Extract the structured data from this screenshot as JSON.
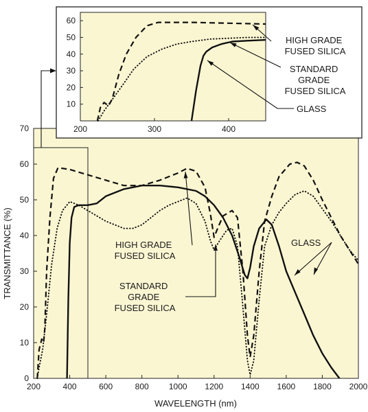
{
  "chart_data": [
    {
      "type": "line",
      "xlabel": "WAVELENGTH (nm)",
      "ylabel": "TRANSMITTANCE (%)",
      "xlim": [
        200,
        2000
      ],
      "ylim": [
        0,
        70
      ],
      "x_ticks": [
        "200",
        "400",
        "600",
        "800",
        "1000",
        "1200",
        "1400",
        "1600",
        "1800",
        "2000"
      ],
      "y_ticks": [
        "0",
        "10",
        "20",
        "30",
        "40",
        "50",
        "60",
        "70"
      ],
      "background": "#fbf6d2",
      "series": [
        {
          "name": "HIGH GRADE FUSED SILICA",
          "style": "dashed",
          "points": [
            [
              220,
              0
            ],
            [
              230,
              8
            ],
            [
              245,
              11
            ],
            [
              255,
              10
            ],
            [
              262,
              14
            ],
            [
              272,
              30
            ],
            [
              290,
              45
            ],
            [
              310,
              56
            ],
            [
              335,
              59
            ],
            [
              400,
              58.5
            ],
            [
              500,
              57
            ],
            [
              600,
              55.5
            ],
            [
              700,
              54
            ],
            [
              800,
              54
            ],
            [
              900,
              55.5
            ],
            [
              1000,
              57.5
            ],
            [
              1050,
              58.8
            ],
            [
              1100,
              58
            ],
            [
              1150,
              53.5
            ],
            [
              1180,
              46
            ],
            [
              1200,
              39.5
            ],
            [
              1220,
              42
            ],
            [
              1250,
              45.5
            ],
            [
              1300,
              47
            ],
            [
              1330,
              45
            ],
            [
              1360,
              30
            ],
            [
              1385,
              12
            ],
            [
              1400,
              6
            ],
            [
              1420,
              12
            ],
            [
              1450,
              30
            ],
            [
              1480,
              44
            ],
            [
              1520,
              51
            ],
            [
              1560,
              56.5
            ],
            [
              1620,
              60
            ],
            [
              1660,
              60.5
            ],
            [
              1700,
              59.5
            ],
            [
              1750,
              55.5
            ],
            [
              1800,
              50
            ],
            [
              1850,
              45
            ],
            [
              1900,
              40
            ],
            [
              1950,
              36
            ],
            [
              2000,
              32
            ]
          ]
        },
        {
          "name": "STANDARD GRADE FUSED SILICA",
          "style": "dotted",
          "points": [
            [
              220,
              0
            ],
            [
              230,
              3
            ],
            [
              250,
              8
            ],
            [
              270,
              17
            ],
            [
              300,
              32
            ],
            [
              330,
              42
            ],
            [
              360,
              47
            ],
            [
              400,
              49.5
            ],
            [
              450,
              48.5
            ],
            [
              500,
              47
            ],
            [
              550,
              45.5
            ],
            [
              600,
              44
            ],
            [
              650,
              43
            ],
            [
              700,
              42
            ],
            [
              750,
              42
            ],
            [
              800,
              43
            ],
            [
              850,
              45
            ],
            [
              900,
              47
            ],
            [
              950,
              48.5
            ],
            [
              1000,
              49.5
            ],
            [
              1050,
              50.5
            ],
            [
              1100,
              49
            ],
            [
              1150,
              44
            ],
            [
              1180,
              38.5
            ],
            [
              1200,
              36
            ],
            [
              1230,
              38.5
            ],
            [
              1270,
              41.5
            ],
            [
              1300,
              42
            ],
            [
              1330,
              37
            ],
            [
              1360,
              20
            ],
            [
              1385,
              5
            ],
            [
              1400,
              1
            ],
            [
              1420,
              5
            ],
            [
              1450,
              22
            ],
            [
              1480,
              37
            ],
            [
              1520,
              43
            ],
            [
              1560,
              46.5
            ],
            [
              1600,
              49
            ],
            [
              1650,
              51.5
            ],
            [
              1700,
              52.5
            ],
            [
              1750,
              51
            ],
            [
              1800,
              47.5
            ],
            [
              1850,
              44
            ],
            [
              1900,
              40
            ],
            [
              1950,
              36
            ],
            [
              2000,
              33
            ]
          ]
        },
        {
          "name": "GLASS",
          "style": "solid",
          "points": [
            [
              385,
              0
            ],
            [
              392,
              22
            ],
            [
              400,
              38
            ],
            [
              410,
              45
            ],
            [
              425,
              48
            ],
            [
              450,
              48.5
            ],
            [
              500,
              48.5
            ],
            [
              550,
              49
            ],
            [
              600,
              51
            ],
            [
              700,
              53
            ],
            [
              800,
              54
            ],
            [
              900,
              54
            ],
            [
              1000,
              53.5
            ],
            [
              1100,
              52.5
            ],
            [
              1150,
              51
            ],
            [
              1200,
              48.5
            ],
            [
              1250,
              45
            ],
            [
              1300,
              40
            ],
            [
              1340,
              34
            ],
            [
              1370,
              29
            ],
            [
              1385,
              28
            ],
            [
              1400,
              31
            ],
            [
              1420,
              37
            ],
            [
              1450,
              42
            ],
            [
              1490,
              44.5
            ],
            [
              1520,
              43
            ],
            [
              1560,
              37
            ],
            [
              1600,
              30
            ],
            [
              1650,
              24
            ],
            [
              1700,
              18
            ],
            [
              1750,
              12
            ],
            [
              1800,
              7
            ],
            [
              1850,
              3
            ],
            [
              1895,
              0
            ]
          ]
        }
      ],
      "annotations": [
        {
          "text": [
            "HIGH GRADE",
            "FUSED SILICA"
          ]
        },
        {
          "text": [
            "STANDARD",
            "GRADE",
            "FUSED SILICA"
          ]
        },
        {
          "text": [
            "GLASS"
          ]
        }
      ]
    },
    {
      "type": "line",
      "role": "inset",
      "xlim": [
        200,
        450
      ],
      "ylim": [
        0,
        65
      ],
      "x_ticks": [
        "200",
        "300",
        "400"
      ],
      "y_ticks": [
        "10",
        "20",
        "30",
        "40",
        "50",
        "60"
      ],
      "background": "#fbf6d2",
      "series": [
        {
          "name": "HIGH GRADE FUSED SILICA",
          "style": "dashed",
          "points": [
            [
              223,
              0
            ],
            [
              227,
              8
            ],
            [
              232,
              11
            ],
            [
              238,
              9
            ],
            [
              243,
              13
            ],
            [
              252,
              28
            ],
            [
              262,
              40
            ],
            [
              275,
              50
            ],
            [
              290,
              57
            ],
            [
              305,
              59
            ],
            [
              350,
              59
            ],
            [
              400,
              58.5
            ],
            [
              450,
              58
            ]
          ]
        },
        {
          "name": "STANDARD GRADE FUSED SILICA",
          "style": "dotted",
          "points": [
            [
              224,
              0
            ],
            [
              232,
              6
            ],
            [
              245,
              14
            ],
            [
              258,
              22
            ],
            [
              272,
              31
            ],
            [
              290,
              38.5
            ],
            [
              310,
              43
            ],
            [
              330,
              46
            ],
            [
              350,
              47.5
            ],
            [
              375,
              49
            ],
            [
              400,
              49.5
            ],
            [
              425,
              50
            ],
            [
              450,
              50
            ]
          ]
        },
        {
          "name": "GLASS",
          "style": "solid",
          "points": [
            [
              350,
              0
            ],
            [
              356,
              18
            ],
            [
              362,
              33
            ],
            [
              366,
              39
            ],
            [
              370,
              41.5
            ],
            [
              378,
              44
            ],
            [
              390,
              46
            ],
            [
              405,
              47.5
            ],
            [
              425,
              48
            ],
            [
              450,
              48.5
            ]
          ]
        }
      ],
      "annotations": [
        {
          "text": [
            "HIGH GRADE",
            "FUSED SILICA"
          ]
        },
        {
          "text": [
            "STANDARD",
            "GRADE",
            "FUSED SILICA"
          ]
        },
        {
          "text": [
            "GLASS"
          ]
        }
      ]
    }
  ]
}
